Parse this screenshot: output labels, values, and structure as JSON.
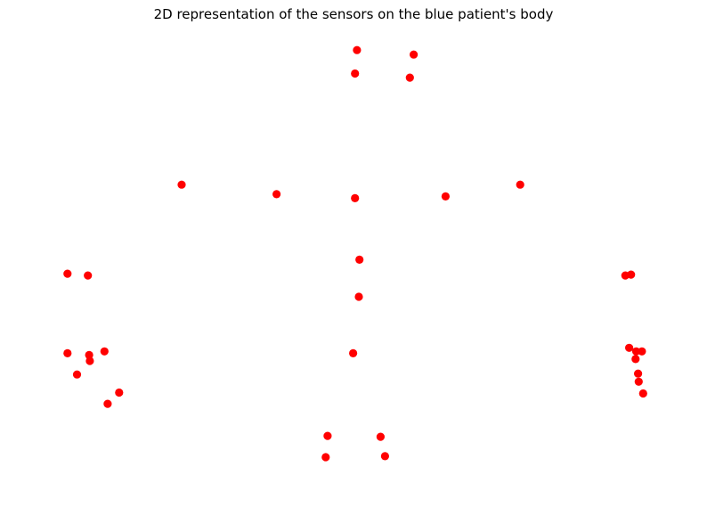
{
  "chart_data": {
    "type": "scatter",
    "title": "2D representation of the sensors on the blue patient's body",
    "xlabel": "",
    "ylabel": "",
    "axes_visible": false,
    "grid": false,
    "xlim": [
      0,
      1000
    ],
    "ylim": [
      0,
      1000
    ],
    "marker_color": "#ff0000",
    "marker": "circle",
    "points": [
      {
        "x": 504,
        "y": 978
      },
      {
        "x": 593,
        "y": 968
      },
      {
        "x": 501,
        "y": 926
      },
      {
        "x": 587,
        "y": 917
      },
      {
        "x": 229,
        "y": 680
      },
      {
        "x": 378,
        "y": 659
      },
      {
        "x": 501,
        "y": 650
      },
      {
        "x": 643,
        "y": 654
      },
      {
        "x": 760,
        "y": 680
      },
      {
        "x": 508,
        "y": 514
      },
      {
        "x": 507,
        "y": 432
      },
      {
        "x": 50,
        "y": 483
      },
      {
        "x": 82,
        "y": 479
      },
      {
        "x": 50,
        "y": 307
      },
      {
        "x": 84,
        "y": 303
      },
      {
        "x": 85,
        "y": 290
      },
      {
        "x": 108,
        "y": 311
      },
      {
        "x": 65,
        "y": 260
      },
      {
        "x": 131,
        "y": 220
      },
      {
        "x": 113,
        "y": 195
      },
      {
        "x": 498,
        "y": 307
      },
      {
        "x": 925,
        "y": 479
      },
      {
        "x": 934,
        "y": 481
      },
      {
        "x": 931,
        "y": 319
      },
      {
        "x": 942,
        "y": 311
      },
      {
        "x": 951,
        "y": 311
      },
      {
        "x": 941,
        "y": 294
      },
      {
        "x": 945,
        "y": 262
      },
      {
        "x": 946,
        "y": 244
      },
      {
        "x": 953,
        "y": 218
      },
      {
        "x": 458,
        "y": 124
      },
      {
        "x": 541,
        "y": 122
      },
      {
        "x": 455,
        "y": 77
      },
      {
        "x": 548,
        "y": 79
      }
    ]
  }
}
